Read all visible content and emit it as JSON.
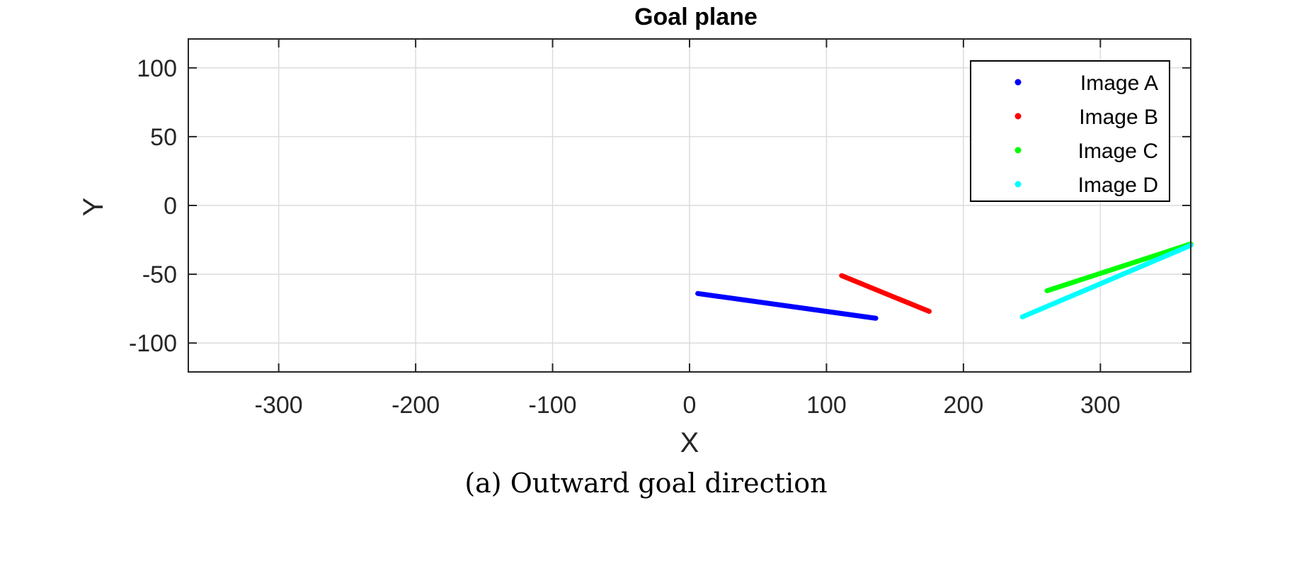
{
  "chart_data": {
    "type": "line",
    "title": "Goal plane",
    "xlabel": "X",
    "ylabel": "Y",
    "xlim": [
      -366,
      366
    ],
    "ylim": [
      -121,
      121
    ],
    "xticks": [
      -300,
      -200,
      -100,
      0,
      100,
      200,
      300
    ],
    "yticks": [
      -100,
      -50,
      0,
      50,
      100
    ],
    "xtick_labels": [
      "-300",
      "-200",
      "-100",
      "0",
      "100",
      "200",
      "300"
    ],
    "ytick_labels": [
      "-100",
      "-50",
      "0",
      "50",
      "100"
    ],
    "grid": true,
    "legend_position": "top-right",
    "series": [
      {
        "name": "Image A",
        "color": "#0000ff",
        "x": [
          6,
          136
        ],
        "y": [
          -64,
          -82
        ]
      },
      {
        "name": "Image B",
        "color": "#ff0000",
        "x": [
          111,
          175
        ],
        "y": [
          -51,
          -77
        ]
      },
      {
        "name": "Image C",
        "color": "#00ff00",
        "x": [
          261,
          366
        ],
        "y": [
          -62,
          -28
        ]
      },
      {
        "name": "Image D",
        "color": "#00ffff",
        "x": [
          243,
          366
        ],
        "y": [
          -81,
          -29
        ]
      }
    ]
  },
  "caption": "(a) Outward goal direction"
}
